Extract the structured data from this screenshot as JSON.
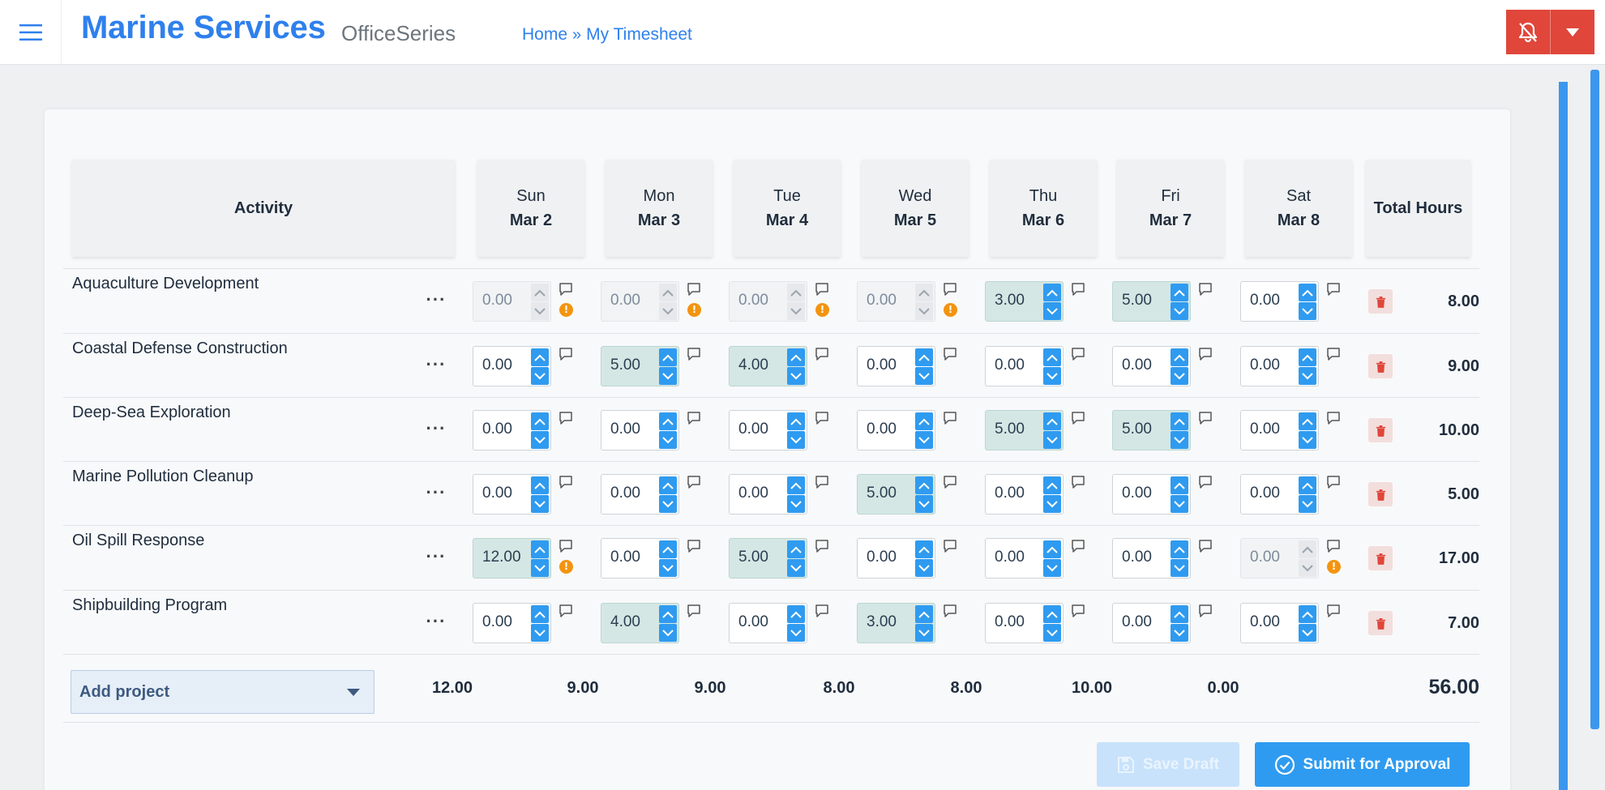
{
  "header": {
    "brand": "Marine Services",
    "suite": "OfficeSeries",
    "breadcrumb": {
      "home": "Home",
      "separator": "»",
      "current": "My Timesheet"
    },
    "accent_color": "#2f80ed",
    "alert_color": "#e0463a"
  },
  "table": {
    "activity_header": "Activity",
    "total_header": "Total Hours",
    "days": [
      {
        "day": "Sun",
        "date": "Mar 2"
      },
      {
        "day": "Mon",
        "date": "Mar 3"
      },
      {
        "day": "Tue",
        "date": "Mar 4"
      },
      {
        "day": "Wed",
        "date": "Mar 5"
      },
      {
        "day": "Thu",
        "date": "Mar 6"
      },
      {
        "day": "Fri",
        "date": "Mar 7"
      },
      {
        "day": "Sat",
        "date": "Mar 8"
      }
    ],
    "rows": [
      {
        "name": "Aquaculture Development",
        "more": "···",
        "cells": [
          {
            "value": "0.00",
            "state": "disabled",
            "warning": true
          },
          {
            "value": "0.00",
            "state": "disabled",
            "warning": true
          },
          {
            "value": "0.00",
            "state": "disabled",
            "warning": true
          },
          {
            "value": "0.00",
            "state": "disabled",
            "warning": true
          },
          {
            "value": "3.00",
            "state": "highlight",
            "warning": false
          },
          {
            "value": "5.00",
            "state": "highlight",
            "warning": false
          },
          {
            "value": "0.00",
            "state": "normal",
            "warning": false
          }
        ],
        "total": "8.00"
      },
      {
        "name": "Coastal Defense Construction",
        "more": "···",
        "cells": [
          {
            "value": "0.00",
            "state": "normal",
            "warning": false
          },
          {
            "value": "5.00",
            "state": "highlight",
            "warning": false
          },
          {
            "value": "4.00",
            "state": "highlight",
            "warning": false
          },
          {
            "value": "0.00",
            "state": "normal",
            "warning": false
          },
          {
            "value": "0.00",
            "state": "normal",
            "warning": false
          },
          {
            "value": "0.00",
            "state": "normal",
            "warning": false
          },
          {
            "value": "0.00",
            "state": "normal",
            "warning": false
          }
        ],
        "total": "9.00"
      },
      {
        "name": "Deep-Sea Exploration",
        "more": "···",
        "cells": [
          {
            "value": "0.00",
            "state": "normal",
            "warning": false
          },
          {
            "value": "0.00",
            "state": "normal",
            "warning": false
          },
          {
            "value": "0.00",
            "state": "normal",
            "warning": false
          },
          {
            "value": "0.00",
            "state": "normal",
            "warning": false
          },
          {
            "value": "5.00",
            "state": "highlight",
            "warning": false
          },
          {
            "value": "5.00",
            "state": "highlight",
            "warning": false
          },
          {
            "value": "0.00",
            "state": "normal",
            "warning": false
          }
        ],
        "total": "10.00"
      },
      {
        "name": "Marine Pollution Cleanup",
        "more": "···",
        "cells": [
          {
            "value": "0.00",
            "state": "normal",
            "warning": false
          },
          {
            "value": "0.00",
            "state": "normal",
            "warning": false
          },
          {
            "value": "0.00",
            "state": "normal",
            "warning": false
          },
          {
            "value": "5.00",
            "state": "highlight",
            "warning": false
          },
          {
            "value": "0.00",
            "state": "normal",
            "warning": false
          },
          {
            "value": "0.00",
            "state": "normal",
            "warning": false
          },
          {
            "value": "0.00",
            "state": "normal",
            "warning": false
          }
        ],
        "total": "5.00"
      },
      {
        "name": "Oil Spill Response",
        "more": "···",
        "cells": [
          {
            "value": "12.00",
            "state": "highlight",
            "warning": true
          },
          {
            "value": "0.00",
            "state": "normal",
            "warning": false
          },
          {
            "value": "5.00",
            "state": "highlight",
            "warning": false
          },
          {
            "value": "0.00",
            "state": "normal",
            "warning": false
          },
          {
            "value": "0.00",
            "state": "normal",
            "warning": false
          },
          {
            "value": "0.00",
            "state": "normal",
            "warning": false
          },
          {
            "value": "0.00",
            "state": "disabled",
            "warning": true
          }
        ],
        "total": "17.00"
      },
      {
        "name": "Shipbuilding Program",
        "more": "···",
        "cells": [
          {
            "value": "0.00",
            "state": "normal",
            "warning": false
          },
          {
            "value": "4.00",
            "state": "highlight",
            "warning": false
          },
          {
            "value": "0.00",
            "state": "normal",
            "warning": false
          },
          {
            "value": "3.00",
            "state": "highlight",
            "warning": false
          },
          {
            "value": "0.00",
            "state": "normal",
            "warning": false
          },
          {
            "value": "0.00",
            "state": "normal",
            "warning": false
          },
          {
            "value": "0.00",
            "state": "normal",
            "warning": false
          }
        ],
        "total": "7.00"
      }
    ],
    "footer": {
      "add_project_label": "Add project",
      "day_totals": [
        "12.00",
        "9.00",
        "9.00",
        "8.00",
        "8.00",
        "10.00",
        "0.00"
      ],
      "grand_total": "56.00"
    }
  },
  "actions": {
    "save_draft": "Save Draft",
    "submit": "Submit for Approval",
    "primary_color": "#2f9bf0",
    "highlight_color": "#d4e7e4",
    "warning_color": "#f39410"
  }
}
